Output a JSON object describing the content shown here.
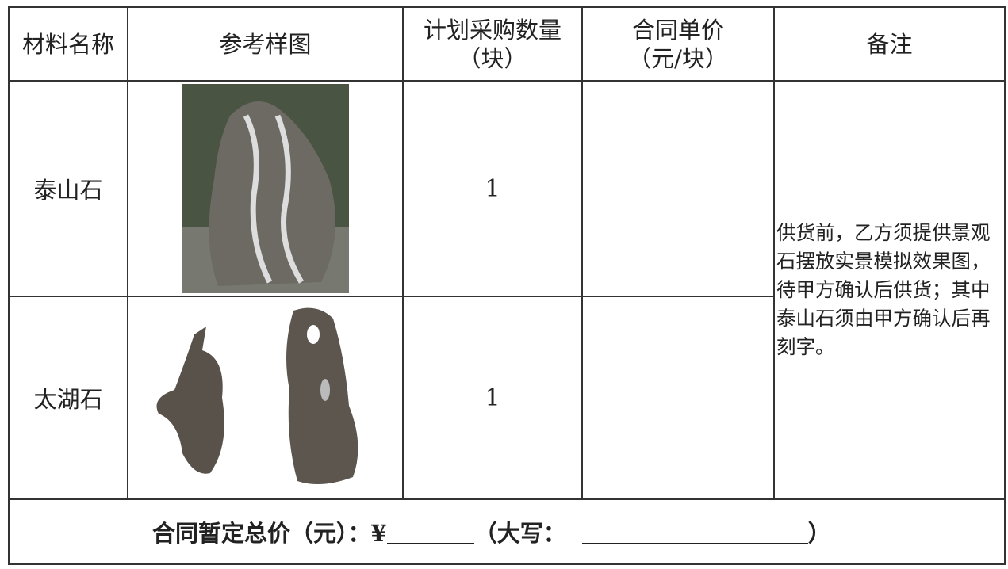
{
  "table": {
    "header": [
      "材料名称",
      "参考样图",
      [
        "计划采购数量",
        "（块）"
      ],
      [
        "合同单价",
        "（元/块）"
      ],
      "备注"
    ],
    "rows": [
      {
        "name": "泰山石",
        "quantity": 1,
        "price": ""
      },
      {
        "name": "太湖石",
        "quantity": 1,
        "price": ""
      }
    ],
    "note": "供货前，乙方须提供景观石摆放实景模拟效果图，待甲方确认后供货；其中泰山石须由甲方确认后再刻字。",
    "footer": {
      "label": "合同暂定总价（元）：¥",
      "caps_label": "（大写：",
      "close": "）"
    }
  }
}
